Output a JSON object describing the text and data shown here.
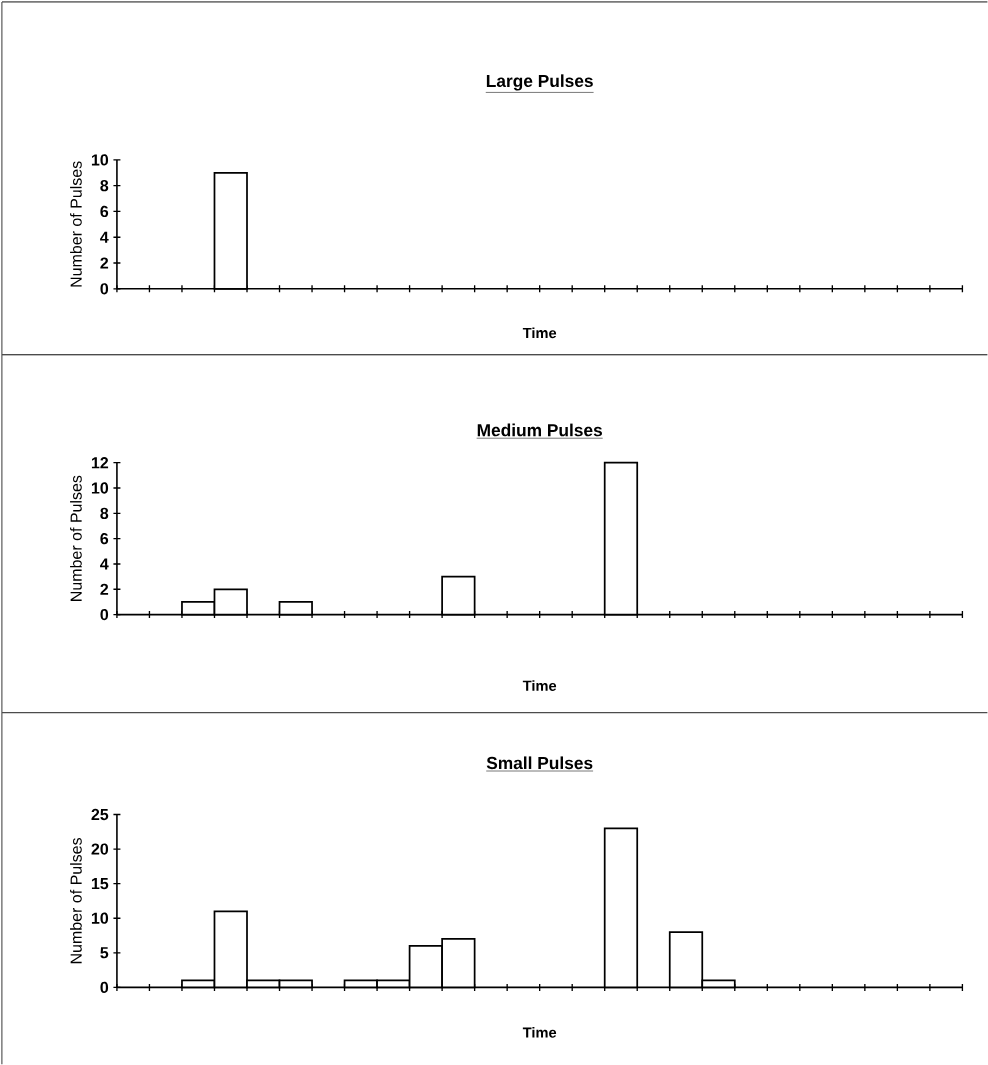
{
  "chart_data": [
    {
      "type": "bar",
      "title": "Large Pulses",
      "xlabel": "Time",
      "ylabel": "Number of Pulses",
      "color": "#ffffff",
      "categories": [
        null,
        null,
        null,
        null,
        null,
        null,
        null,
        null,
        null,
        null,
        null,
        null,
        null,
        null,
        null,
        null,
        null,
        null,
        null,
        null,
        null,
        null,
        null,
        null,
        null,
        null
      ],
      "values": [
        null,
        null,
        null,
        9,
        null,
        null,
        null,
        null,
        null,
        null,
        null,
        null,
        null,
        null,
        null,
        null,
        null,
        null,
        null,
        null,
        null,
        null,
        null,
        null,
        null,
        null
      ],
      "ylim": [
        0,
        10
      ],
      "yticks": [
        0,
        2,
        4,
        6,
        8,
        10
      ]
    },
    {
      "type": "bar",
      "title": "Medium Pulses",
      "xlabel": "Time",
      "ylabel": "Number of Pulses",
      "color": "#ffffff",
      "categories": [
        null,
        null,
        null,
        null,
        null,
        null,
        null,
        null,
        null,
        null,
        null,
        null,
        null,
        null,
        null,
        null,
        null,
        null,
        null,
        null,
        null,
        null,
        null,
        null,
        null,
        null
      ],
      "values": [
        null,
        null,
        1,
        2,
        null,
        1,
        null,
        null,
        null,
        null,
        3,
        null,
        null,
        null,
        null,
        12,
        null,
        null,
        null,
        null,
        null,
        null,
        null,
        null,
        null,
        null
      ],
      "ylim": [
        0,
        12
      ],
      "yticks": [
        0,
        2,
        4,
        6,
        8,
        10,
        12
      ]
    },
    {
      "type": "bar",
      "title": "Small Pulses",
      "xlabel": "Time",
      "ylabel": "Number of Pulses",
      "color": "#ffffff",
      "categories": [
        null,
        null,
        null,
        null,
        null,
        null,
        null,
        null,
        null,
        null,
        null,
        null,
        null,
        null,
        null,
        null,
        null,
        null,
        null,
        null,
        null,
        null,
        null,
        null,
        null,
        null
      ],
      "values": [
        null,
        null,
        1,
        11,
        1,
        1,
        null,
        1,
        1,
        6,
        7,
        null,
        null,
        null,
        null,
        23,
        null,
        8,
        1,
        null,
        null,
        null,
        null,
        null,
        null,
        null
      ],
      "ylim": [
        0,
        25
      ],
      "yticks": [
        0,
        5,
        10,
        15,
        20,
        25
      ]
    }
  ]
}
